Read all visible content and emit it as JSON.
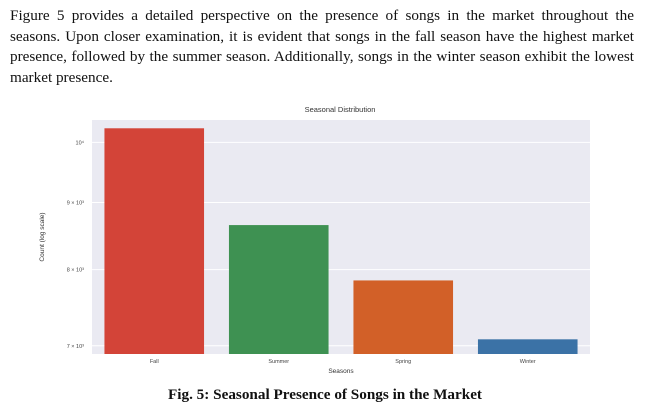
{
  "paper": {
    "paragraph": "Figure 5 provides a detailed perspective on the presence of songs in the market throughout the seasons. Upon closer examination, it is evident that songs in the fall season have the highest market presence, followed by the summer season. Additionally, songs in the winter season exhibit the lowest market presence.",
    "caption": "Fig. 5: Seasonal Presence of Songs in the Market"
  },
  "colors": {
    "plot_background": "#eaeaf2",
    "grid": "#ffffff"
  },
  "chart_data": {
    "type": "bar",
    "title": "Seasonal Distribution",
    "xlabel": "Seasons",
    "ylabel": "Count (log scale)",
    "yscale": "log",
    "ylim": [
      6900,
      10400
    ],
    "yticks": [
      {
        "value": 7000,
        "label": "7 × 10³"
      },
      {
        "value": 8000,
        "label": "8 × 10³"
      },
      {
        "value": 9000,
        "label": "9 × 10³"
      },
      {
        "value": 10000,
        "label": "10⁴"
      }
    ],
    "categories": [
      "Fall",
      "Summer",
      "Spring",
      "Winter"
    ],
    "values": [
      10250,
      8650,
      7850,
      7080
    ],
    "colors": [
      "#d34438",
      "#3e9152",
      "#d26028",
      "#3b72a6"
    ],
    "grid": true,
    "legend": "none"
  }
}
